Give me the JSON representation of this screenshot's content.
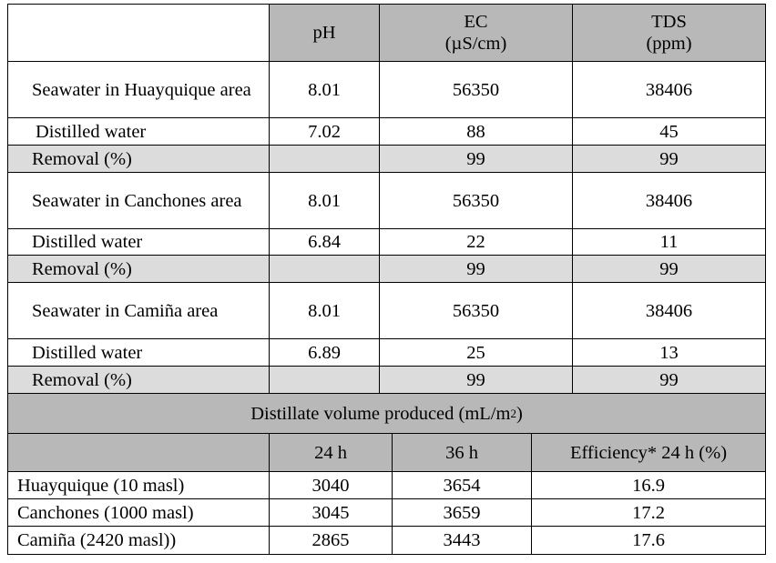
{
  "header": {
    "blank": "",
    "ph": "pH",
    "ec_line1": "EC",
    "ec_line2": "(µS/cm)",
    "tds_line1": "TDS",
    "tds_line2": "(ppm)"
  },
  "rows": [
    {
      "label": "Seawater in Huayquique area",
      "ph": "8.01",
      "ec": "56350",
      "tds": "38406"
    },
    {
      "label": "Distilled water",
      "ph": "7.02",
      "ec": "88",
      "tds": "45"
    },
    {
      "label": "Removal (%)",
      "ph": "",
      "ec": "99",
      "tds": "99"
    },
    {
      "label": "Seawater in Canchones area",
      "ph": "8.01",
      "ec": "56350",
      "tds": "38406"
    },
    {
      "label": "Distilled water",
      "ph": "6.84",
      "ec": "22",
      "tds": "11"
    },
    {
      "label": "Removal (%)",
      "ph": "",
      "ec": "99",
      "tds": "99"
    },
    {
      "label": "Seawater in Camiña area",
      "ph": "8.01",
      "ec": "56350",
      "tds": "38406"
    },
    {
      "label": "Distilled water",
      "ph": "6.89",
      "ec": "25",
      "tds": "13"
    },
    {
      "label": "Removal (%)",
      "ph": "",
      "ec": "99",
      "tds": "99"
    }
  ],
  "volume_title": "Distillate volume produced (mL/m",
  "volume_title_sup": "2",
  "volume_title_end": ")",
  "volume_header": {
    "blank": "",
    "h24": "24 h",
    "h36": "36 h",
    "efficiency": "Efficiency* 24 h (%)"
  },
  "volume_rows": [
    {
      "site": "Huayquique (10 masl)",
      "h24": "3040",
      "h36": "3654",
      "eff": "16.9"
    },
    {
      "site": "Canchones (1000 masl)",
      "h24": "3045",
      "h36": "3659",
      "eff": "17.2"
    },
    {
      "site": "Camiña (2420 masl))",
      "h24": "2865",
      "h36": "3443",
      "eff": "17.6"
    }
  ]
}
